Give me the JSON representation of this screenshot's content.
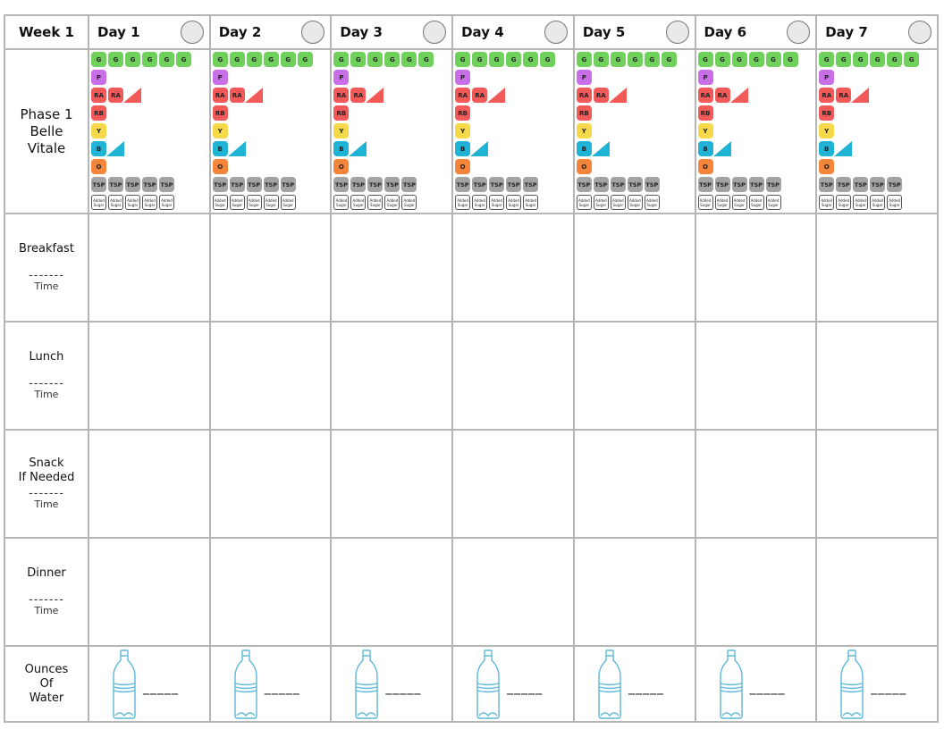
{
  "header": {
    "week_label": "Week 1",
    "days": [
      "Day 1",
      "Day 2",
      "Day 3",
      "Day 4",
      "Day 5",
      "Day 6",
      "Day 7"
    ]
  },
  "phase": {
    "line1": "Phase 1",
    "line2": "Belle",
    "line3": "Vitale"
  },
  "tracker": {
    "g": "G",
    "p": "P",
    "ra": "RA",
    "rb": "RB",
    "y": "Y",
    "b": "B",
    "o": "O",
    "tsp": "TSP",
    "added_sugar": "Added Sugar"
  },
  "meals": [
    {
      "line1": "Breakfast",
      "line2": "",
      "dash": "-------",
      "time": "Time"
    },
    {
      "line1": "Lunch",
      "line2": "",
      "dash": "-------",
      "time": "Time"
    },
    {
      "line1": "Snack",
      "line2": "If Needed",
      "dash": "-------",
      "time": "Time"
    },
    {
      "line1": "Dinner",
      "line2": "",
      "dash": "-------",
      "time": "Time"
    }
  ],
  "water": {
    "line1": "Ounces",
    "line2": "Of",
    "line3": "Water",
    "blank": "_____"
  },
  "colors": {
    "green": "#6fd15b",
    "purple": "#c86ee6",
    "red": "#f25959",
    "yellow": "#f5d94a",
    "blue": "#1fb3d6",
    "orange": "#f5853a",
    "gray": "#a3a3a3",
    "bottle": "#5cb8d8"
  }
}
